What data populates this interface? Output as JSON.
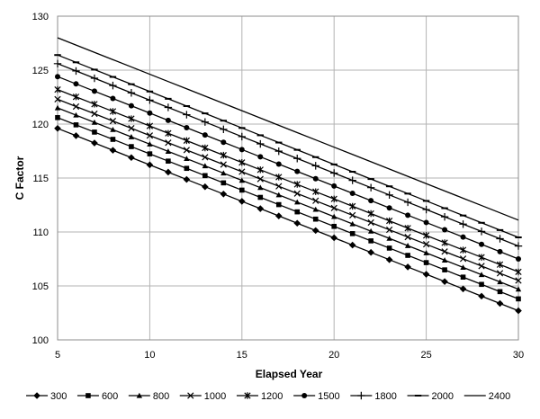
{
  "chart_data": {
    "type": "line",
    "title": "",
    "xlabel": "Elapsed Year",
    "ylabel": "C Factor",
    "xlim": [
      5,
      30
    ],
    "ylim": [
      100,
      130
    ],
    "xticks": [
      5,
      10,
      15,
      20,
      25,
      30
    ],
    "yticks": [
      100,
      105,
      110,
      115,
      120,
      125,
      130
    ],
    "grid": true,
    "legend_position": "bottom",
    "line_color": "#000000",
    "x": [
      5,
      6,
      7,
      8,
      9,
      10,
      11,
      12,
      13,
      14,
      15,
      16,
      17,
      18,
      19,
      20,
      21,
      22,
      23,
      24,
      25,
      26,
      27,
      28,
      29,
      30
    ],
    "series": [
      {
        "name": "300",
        "marker": "diamond",
        "start": 119.6,
        "end": 102.7
      },
      {
        "name": "600",
        "marker": "square",
        "start": 120.6,
        "end": 103.8
      },
      {
        "name": "800",
        "marker": "triangle",
        "start": 121.5,
        "end": 104.7
      },
      {
        "name": "1000",
        "marker": "x",
        "start": 122.3,
        "end": 105.5
      },
      {
        "name": "1200",
        "marker": "star",
        "start": 123.2,
        "end": 106.3
      },
      {
        "name": "1500",
        "marker": "circle",
        "start": 124.4,
        "end": 107.5
      },
      {
        "name": "1800",
        "marker": "plus",
        "start": 125.6,
        "end": 108.7
      },
      {
        "name": "2000",
        "marker": "dash",
        "start": 126.4,
        "end": 109.5
      },
      {
        "name": "2400",
        "marker": "none",
        "start": 128.0,
        "end": 111.1
      }
    ]
  }
}
